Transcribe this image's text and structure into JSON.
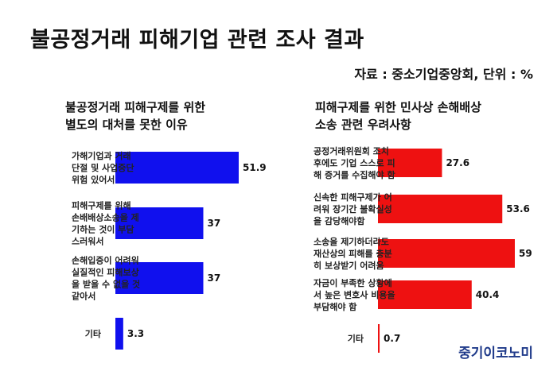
{
  "title": "불공정거래 피해기업 관련 조사 결과",
  "source": "자료 : 중소기업중앙회, 단위 : %",
  "brand": "중기이코노미",
  "chart_data": [
    {
      "type": "bar",
      "orientation": "horizontal",
      "title": "불공정거래 피해구제를 위한\n별도의 대처를 못한 이유",
      "categories": [
        "가해기업과 거래\n단절 및 사업중단\n위험 있어서",
        "피해구제를 위해\n손배배상소송을 제\n기하는 것이 부담\n스러워서",
        "손해입증이 어려워\n실질적인 피해보상\n을 받을 수 없을 것\n같아서",
        "기타"
      ],
      "values": [
        51.9,
        37,
        37,
        3.3
      ],
      "value_labels": [
        "51.9",
        "37",
        "37",
        "3.3"
      ],
      "bar_color": "#1010ee",
      "xlim": [
        0,
        60
      ],
      "grid": false
    },
    {
      "type": "bar",
      "orientation": "horizontal",
      "title": "피해구제를 위한 민사상 손해배상\n소송 관련 우려사항",
      "categories": [
        "공정거래위원회 조치\n후에도 기업 스스로 피\n해 증거를 수집해야 함",
        "신속한 피해구제가 어\n려워 장기간 불확실성\n을 감당해야함",
        "소송을 제기하더라도\n재산상의 피해를 충분\n히 보상받기 어려움",
        "자금이 부족한 상황에\n서 높은 변호사 비용을\n부담해야 함",
        "기타"
      ],
      "values": [
        27.6,
        53.6,
        59,
        40.4,
        0.7
      ],
      "value_labels": [
        "27.6",
        "53.6",
        "59",
        "40.4",
        "0.7"
      ],
      "bar_color": "#ee1111",
      "xlim": [
        0,
        60
      ],
      "grid": false
    }
  ]
}
